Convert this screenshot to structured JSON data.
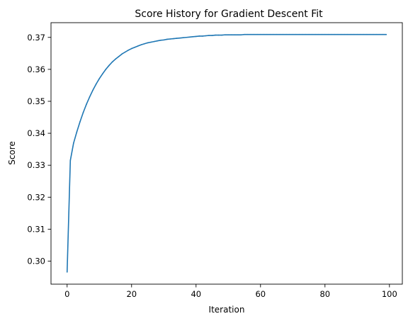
{
  "chart_data": {
    "type": "line",
    "title": "Score History for Gradient Descent Fit",
    "xlabel": "Iteration",
    "ylabel": "Score",
    "xlim": [
      -5,
      104
    ],
    "ylim": [
      0.2928,
      0.3746
    ],
    "xticks": [
      0,
      20,
      40,
      60,
      80,
      100
    ],
    "xtick_labels": [
      "0",
      "20",
      "40",
      "60",
      "80",
      "100"
    ],
    "yticks": [
      0.3,
      0.31,
      0.32,
      0.33,
      0.34,
      0.35,
      0.36,
      0.37
    ],
    "ytick_labels": [
      "0.30",
      "0.31",
      "0.32",
      "0.33",
      "0.34",
      "0.35",
      "0.36",
      "0.37"
    ],
    "grid": false,
    "series": [
      {
        "color": "#1f77b4",
        "x": [
          0,
          1,
          2,
          3,
          4,
          5,
          6,
          7,
          8,
          9,
          10,
          11,
          12,
          13,
          14,
          15,
          16,
          17,
          18,
          19,
          20,
          21,
          22,
          23,
          24,
          25,
          26,
          27,
          28,
          29,
          30,
          31,
          32,
          33,
          34,
          35,
          36,
          37,
          38,
          39,
          40,
          41,
          42,
          43,
          44,
          45,
          46,
          47,
          48,
          49,
          50,
          51,
          52,
          53,
          54,
          55,
          56,
          57,
          58,
          59,
          60,
          61,
          62,
          63,
          64,
          65,
          66,
          67,
          68,
          69,
          70,
          71,
          72,
          73,
          74,
          75,
          76,
          77,
          78,
          79,
          80,
          81,
          82,
          83,
          84,
          85,
          86,
          87,
          88,
          89,
          90,
          91,
          92,
          93,
          94,
          95,
          96,
          97,
          98,
          99
        ],
        "y": [
          0.2966,
          0.3315,
          0.3369,
          0.3404,
          0.3436,
          0.3465,
          0.3491,
          0.3514,
          0.3535,
          0.3554,
          0.3571,
          0.3586,
          0.36,
          0.3612,
          0.3623,
          0.3632,
          0.364,
          0.3648,
          0.3654,
          0.366,
          0.3665,
          0.3669,
          0.3673,
          0.3677,
          0.368,
          0.3683,
          0.3685,
          0.3687,
          0.3689,
          0.3691,
          0.3692,
          0.3694,
          0.3695,
          0.3696,
          0.3697,
          0.3698,
          0.3699,
          0.37,
          0.3701,
          0.3702,
          0.3703,
          0.3704,
          0.3704,
          0.3705,
          0.3706,
          0.3706,
          0.3707,
          0.3707,
          0.3707,
          0.3708,
          0.3708,
          0.3708,
          0.3708,
          0.3708,
          0.3708,
          0.3709,
          0.3709,
          0.3709,
          0.3709,
          0.3709,
          0.3709,
          0.3709,
          0.3709,
          0.3709,
          0.3709,
          0.3709,
          0.3709,
          0.3709,
          0.3709,
          0.3709,
          0.3709,
          0.3709,
          0.3709,
          0.3709,
          0.3709,
          0.3709,
          0.3709,
          0.3709,
          0.3709,
          0.3709,
          0.3709,
          0.3709,
          0.3709,
          0.3709,
          0.3709,
          0.3709,
          0.3709,
          0.3709,
          0.3709,
          0.3709,
          0.3709,
          0.3709,
          0.3709,
          0.3709,
          0.3709,
          0.3709,
          0.3709,
          0.3709,
          0.3709,
          0.3709
        ]
      }
    ]
  }
}
